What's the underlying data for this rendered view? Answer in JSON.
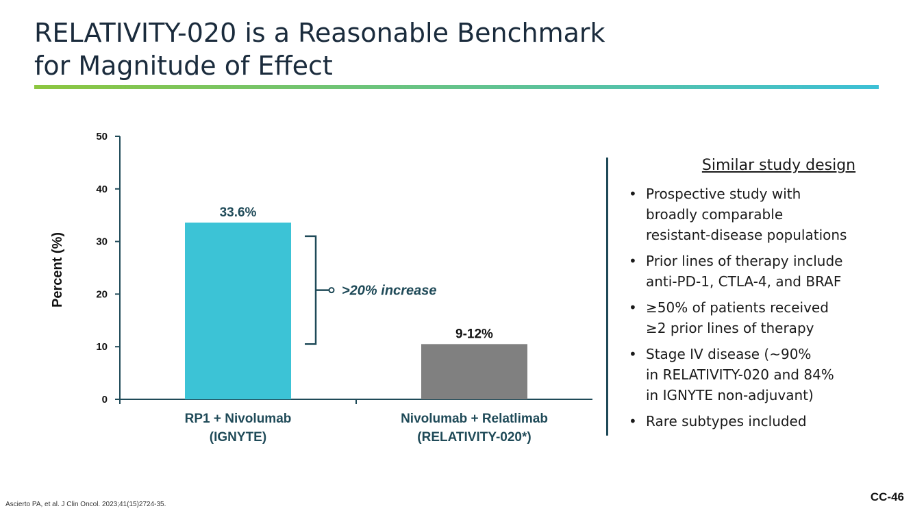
{
  "slide": {
    "title_lines": [
      "RELATIVITY-020 is a Reasonable Benchmark",
      "for Magnitude of Effect"
    ],
    "footnote": "Ascierto PA, et al. J Clin Oncol. 2023;41(15)2724-35.",
    "slide_number": "CC-46"
  },
  "chart_data": {
    "type": "bar",
    "categories": [
      [
        "RP1 + Nivolumab",
        "(IGNYTE)"
      ],
      [
        "Nivolumab + Relatlimab",
        "(RELATIVITY-020*)"
      ]
    ],
    "values": [
      33.6,
      10.5
    ],
    "data_labels": [
      "33.6%",
      "9-12%"
    ],
    "bar_colors": [
      "#3cc3d6",
      "#808080"
    ],
    "label_colors": [
      "#1f4a58",
      "#111111"
    ],
    "ylabel": "Percent (%)",
    "ylim": [
      0,
      50
    ],
    "yticks": [
      0,
      10,
      20,
      30,
      40,
      50
    ],
    "grid": false,
    "annotation": {
      "text": ">20% increase",
      "bracket_from": 10.5,
      "bracket_to": 31
    },
    "axis_color": "#1f4a58"
  },
  "side_panel": {
    "heading": "Similar study design",
    "bullet_glyph": "•",
    "bullets": [
      {
        "lines": [
          "Prospective study with",
          "broadly comparable",
          "resistant-disease populations"
        ]
      },
      {
        "lines": [
          "Prior lines of therapy include",
          "anti-PD-1, CTLA-4, and BRAF"
        ]
      },
      {
        "lines": [
          "≥50% of patients received",
          "≥2 prior lines of therapy"
        ]
      },
      {
        "lines": [
          "Stage IV disease (~90%",
          "in RELATIVITY-020 and 84%",
          "in IGNYTE non-adjuvant)"
        ]
      },
      {
        "lines": [
          "Rare subtypes included"
        ]
      }
    ]
  }
}
